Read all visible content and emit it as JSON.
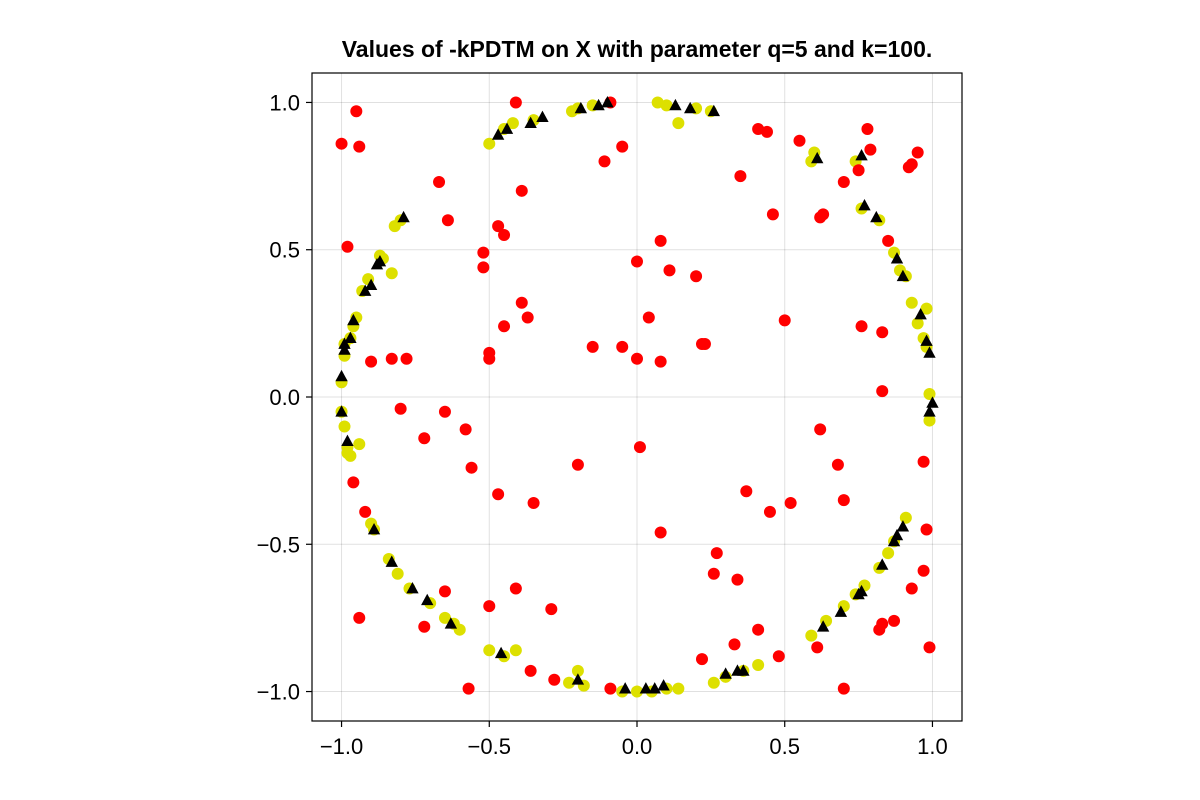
{
  "chart_data": {
    "type": "scatter",
    "title": "Values of -kPDTM on X with parameter q=5 and k=100.",
    "xlabel": "",
    "ylabel": "",
    "xlim": [
      -1.1,
      1.1
    ],
    "ylim": [
      -1.1,
      1.1
    ],
    "grid": true,
    "xticks": [
      -1.0,
      -0.5,
      0.0,
      0.5,
      1.0
    ],
    "yticks": [
      -1.0,
      -0.5,
      0.0,
      0.5,
      1.0
    ],
    "xtick_labels": [
      "−1.0",
      "−0.5",
      "0.0",
      "0.5",
      "1.0"
    ],
    "ytick_labels": [
      "−1.0",
      "−0.5",
      "0.0",
      "0.5",
      "1.0"
    ],
    "series": [
      {
        "marker": "circle",
        "color": "#dde000",
        "points": [
          [
            -0.2,
            0.98
          ],
          [
            -0.15,
            0.99
          ],
          [
            0.1,
            0.99
          ],
          [
            0.2,
            0.98
          ],
          [
            0.25,
            0.97
          ],
          [
            0.14,
            0.93
          ],
          [
            0.07,
            1.0
          ],
          [
            -0.5,
            0.86
          ],
          [
            -0.45,
            0.91
          ],
          [
            -0.42,
            0.93
          ],
          [
            -0.35,
            0.94
          ],
          [
            -0.22,
            0.97
          ],
          [
            0.59,
            0.8
          ],
          [
            0.6,
            0.83
          ],
          [
            0.74,
            0.8
          ],
          [
            0.76,
            0.64
          ],
          [
            0.82,
            0.6
          ],
          [
            -0.82,
            0.58
          ],
          [
            -0.8,
            0.6
          ],
          [
            -0.87,
            0.48
          ],
          [
            -0.83,
            0.42
          ],
          [
            -0.86,
            0.47
          ],
          [
            -0.91,
            0.4
          ],
          [
            -0.93,
            0.36
          ],
          [
            -0.95,
            0.27
          ],
          [
            -0.96,
            0.24
          ],
          [
            -0.97,
            0.2
          ],
          [
            -0.99,
            0.14
          ],
          [
            -1.0,
            0.05
          ],
          [
            -0.99,
            0.18
          ],
          [
            0.87,
            0.49
          ],
          [
            0.89,
            0.43
          ],
          [
            0.91,
            0.41
          ],
          [
            0.93,
            0.32
          ],
          [
            0.95,
            0.25
          ],
          [
            0.97,
            0.2
          ],
          [
            0.98,
            0.3
          ],
          [
            0.99,
            0.01
          ],
          [
            0.99,
            -0.08
          ],
          [
            0.98,
            0.17
          ],
          [
            -1.0,
            -0.05
          ],
          [
            -0.99,
            -0.1
          ],
          [
            -0.98,
            -0.17
          ],
          [
            -0.98,
            -0.19
          ],
          [
            -0.97,
            -0.2
          ],
          [
            -0.94,
            -0.16
          ],
          [
            -0.9,
            -0.43
          ],
          [
            -0.89,
            -0.45
          ],
          [
            -0.84,
            -0.55
          ],
          [
            -0.81,
            -0.6
          ],
          [
            -0.77,
            -0.65
          ],
          [
            -0.7,
            -0.7
          ],
          [
            -0.65,
            -0.75
          ],
          [
            -0.62,
            -0.77
          ],
          [
            -0.6,
            -0.79
          ],
          [
            -0.5,
            -0.86
          ],
          [
            -0.45,
            -0.88
          ],
          [
            -0.41,
            -0.86
          ],
          [
            -0.2,
            -0.93
          ],
          [
            -0.18,
            -0.98
          ],
          [
            -0.23,
            -0.97
          ],
          [
            -0.05,
            -1.0
          ],
          [
            0.0,
            -1.0
          ],
          [
            0.05,
            -1.0
          ],
          [
            0.1,
            -0.99
          ],
          [
            0.14,
            -0.99
          ],
          [
            0.26,
            -0.97
          ],
          [
            0.3,
            -0.95
          ],
          [
            0.36,
            -0.93
          ],
          [
            0.41,
            -0.91
          ],
          [
            0.59,
            -0.81
          ],
          [
            0.64,
            -0.76
          ],
          [
            0.7,
            -0.71
          ],
          [
            0.74,
            -0.67
          ],
          [
            0.77,
            -0.64
          ],
          [
            0.82,
            -0.58
          ],
          [
            0.85,
            -0.53
          ],
          [
            0.87,
            -0.49
          ],
          [
            0.91,
            -0.41
          ]
        ]
      },
      {
        "marker": "circle",
        "color": "#ff0000",
        "points": [
          [
            -0.41,
            1.0
          ],
          [
            -0.09,
            1.0
          ],
          [
            -0.95,
            0.97
          ],
          [
            -1.0,
            0.86
          ],
          [
            -0.94,
            0.85
          ],
          [
            -0.11,
            0.8
          ],
          [
            -0.05,
            0.85
          ],
          [
            0.41,
            0.91
          ],
          [
            0.44,
            0.9
          ],
          [
            0.55,
            0.87
          ],
          [
            0.78,
            0.91
          ],
          [
            0.79,
            0.84
          ],
          [
            0.93,
            0.79
          ],
          [
            0.95,
            0.83
          ],
          [
            0.92,
            0.78
          ],
          [
            0.35,
            0.75
          ],
          [
            0.7,
            0.73
          ],
          [
            0.75,
            0.77
          ],
          [
            0.46,
            0.62
          ],
          [
            0.63,
            0.62
          ],
          [
            0.62,
            0.61
          ],
          [
            -0.67,
            0.73
          ],
          [
            -0.64,
            0.6
          ],
          [
            -0.39,
            0.7
          ],
          [
            -0.47,
            0.58
          ],
          [
            -0.45,
            0.55
          ],
          [
            -0.52,
            0.49
          ],
          [
            -0.52,
            0.44
          ],
          [
            -0.98,
            0.51
          ],
          [
            -0.39,
            0.32
          ],
          [
            -0.37,
            0.27
          ],
          [
            -0.45,
            0.24
          ],
          [
            0.08,
            0.53
          ],
          [
            0.0,
            0.46
          ],
          [
            0.11,
            0.43
          ],
          [
            0.2,
            0.41
          ],
          [
            0.85,
            0.53
          ],
          [
            0.04,
            0.27
          ],
          [
            0.5,
            0.26
          ],
          [
            0.76,
            0.24
          ],
          [
            0.83,
            0.22
          ],
          [
            -0.5,
            0.15
          ],
          [
            -0.5,
            0.13
          ],
          [
            -0.15,
            0.17
          ],
          [
            -0.05,
            0.17
          ],
          [
            0.0,
            0.13
          ],
          [
            0.08,
            0.12
          ],
          [
            0.22,
            0.18
          ],
          [
            0.23,
            0.18
          ],
          [
            -0.9,
            0.12
          ],
          [
            -0.83,
            0.13
          ],
          [
            -0.78,
            0.13
          ],
          [
            0.83,
            0.02
          ],
          [
            -0.8,
            -0.04
          ],
          [
            -0.65,
            -0.05
          ],
          [
            -0.58,
            -0.11
          ],
          [
            -0.72,
            -0.14
          ],
          [
            -0.56,
            -0.24
          ],
          [
            -0.2,
            -0.23
          ],
          [
            0.01,
            -0.17
          ],
          [
            0.62,
            -0.11
          ],
          [
            0.68,
            -0.23
          ],
          [
            0.97,
            -0.22
          ],
          [
            -0.96,
            -0.29
          ],
          [
            -0.47,
            -0.33
          ],
          [
            -0.35,
            -0.36
          ],
          [
            -0.92,
            -0.39
          ],
          [
            0.37,
            -0.32
          ],
          [
            0.45,
            -0.39
          ],
          [
            0.52,
            -0.36
          ],
          [
            0.7,
            -0.35
          ],
          [
            0.08,
            -0.46
          ],
          [
            0.98,
            -0.45
          ],
          [
            0.27,
            -0.53
          ],
          [
            0.97,
            -0.59
          ],
          [
            0.26,
            -0.6
          ],
          [
            0.34,
            -0.62
          ],
          [
            0.93,
            -0.65
          ],
          [
            -0.65,
            -0.66
          ],
          [
            -0.41,
            -0.65
          ],
          [
            -0.5,
            -0.71
          ],
          [
            -0.29,
            -0.72
          ],
          [
            -0.94,
            -0.75
          ],
          [
            -0.72,
            -0.78
          ],
          [
            0.83,
            -0.77
          ],
          [
            0.82,
            -0.79
          ],
          [
            0.87,
            -0.76
          ],
          [
            0.99,
            -0.85
          ],
          [
            0.33,
            -0.84
          ],
          [
            0.41,
            -0.79
          ],
          [
            0.61,
            -0.85
          ],
          [
            0.22,
            -0.89
          ],
          [
            0.48,
            -0.88
          ],
          [
            -0.36,
            -0.93
          ],
          [
            -0.28,
            -0.96
          ],
          [
            -0.09,
            -0.99
          ],
          [
            -0.57,
            -0.99
          ],
          [
            0.7,
            -0.99
          ]
        ]
      },
      {
        "marker": "triangle",
        "color": "#000000",
        "points": [
          [
            -0.19,
            0.98
          ],
          [
            -0.13,
            0.99
          ],
          [
            -0.1,
            1.0
          ],
          [
            0.13,
            0.99
          ],
          [
            0.18,
            0.98
          ],
          [
            0.26,
            0.97
          ],
          [
            -0.47,
            0.89
          ],
          [
            -0.44,
            0.91
          ],
          [
            -0.36,
            0.93
          ],
          [
            -0.32,
            0.95
          ],
          [
            0.61,
            0.81
          ],
          [
            0.76,
            0.82
          ],
          [
            0.77,
            0.65
          ],
          [
            0.81,
            0.61
          ],
          [
            -0.79,
            0.61
          ],
          [
            -0.87,
            0.46
          ],
          [
            -0.88,
            0.45
          ],
          [
            -0.9,
            0.38
          ],
          [
            -0.92,
            0.36
          ],
          [
            -0.96,
            0.26
          ],
          [
            -0.97,
            0.2
          ],
          [
            -0.99,
            0.18
          ],
          [
            -0.99,
            0.16
          ],
          [
            -1.0,
            0.07
          ],
          [
            0.88,
            0.47
          ],
          [
            0.9,
            0.41
          ],
          [
            0.96,
            0.28
          ],
          [
            0.98,
            0.19
          ],
          [
            0.99,
            0.15
          ],
          [
            1.0,
            -0.02
          ],
          [
            0.99,
            -0.05
          ],
          [
            -1.0,
            -0.05
          ],
          [
            -0.98,
            -0.15
          ],
          [
            -0.89,
            -0.45
          ],
          [
            -0.83,
            -0.56
          ],
          [
            -0.76,
            -0.65
          ],
          [
            -0.71,
            -0.69
          ],
          [
            -0.63,
            -0.77
          ],
          [
            -0.46,
            -0.87
          ],
          [
            -0.2,
            -0.96
          ],
          [
            -0.04,
            -0.99
          ],
          [
            0.03,
            -0.99
          ],
          [
            0.06,
            -0.99
          ],
          [
            0.09,
            -0.98
          ],
          [
            0.3,
            -0.94
          ],
          [
            0.34,
            -0.93
          ],
          [
            0.36,
            -0.93
          ],
          [
            0.63,
            -0.78
          ],
          [
            0.69,
            -0.73
          ],
          [
            0.75,
            -0.67
          ],
          [
            0.76,
            -0.66
          ],
          [
            0.83,
            -0.57
          ],
          [
            0.87,
            -0.49
          ],
          [
            0.88,
            -0.47
          ],
          [
            0.9,
            -0.44
          ]
        ]
      }
    ]
  }
}
